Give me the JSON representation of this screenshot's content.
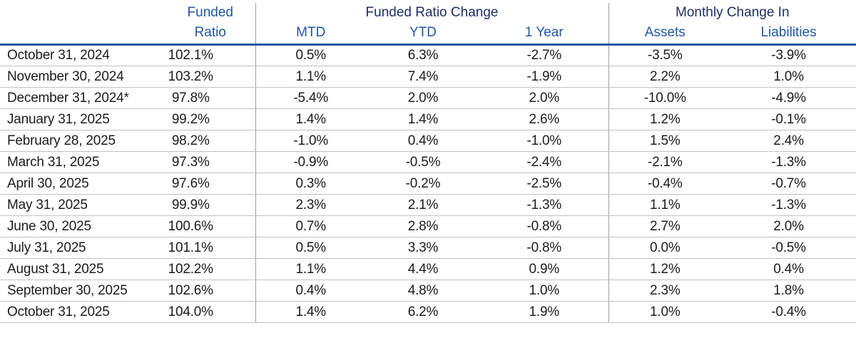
{
  "colors": {
    "group_header_text": "#1f2f63",
    "sub_header_text": "#2157a6",
    "header_rule": "#2057a6",
    "row_divider": "#c2c2c2",
    "column_divider": "#9e9e9e",
    "body_text": "#1c1c1c",
    "background": "#ffffff"
  },
  "chart_data": {
    "type": "table",
    "column_groups": [
      {
        "label": "Funded Ratio",
        "columns": [
          "Funded Ratio"
        ]
      },
      {
        "label": "Funded Ratio Change",
        "columns": [
          "MTD",
          "YTD",
          "1 Year"
        ]
      },
      {
        "label": "Monthly Change In",
        "columns": [
          "Assets",
          "Liabilities"
        ]
      }
    ],
    "headers": {
      "date": "",
      "funded": "Funded",
      "ratio": "Ratio",
      "group_funded_ratio_change": "Funded Ratio Change",
      "group_monthly_change_in": "Monthly Change In",
      "mtd": "MTD",
      "ytd": "YTD",
      "one_year": "1 Year",
      "assets": "Assets",
      "liabilities": "Liabilities"
    },
    "rows": [
      {
        "date": "October 31, 2024",
        "funded_ratio": "102.1%",
        "mtd": "0.5%",
        "ytd": "6.3%",
        "one_year": "-2.7%",
        "assets": "-3.5%",
        "liabilities": "-3.9%"
      },
      {
        "date": "November 30, 2024",
        "funded_ratio": "103.2%",
        "mtd": "1.1%",
        "ytd": "7.4%",
        "one_year": "-1.9%",
        "assets": "2.2%",
        "liabilities": "1.0%"
      },
      {
        "date": "December 31, 2024*",
        "funded_ratio": "97.8%",
        "mtd": "-5.4%",
        "ytd": "2.0%",
        "one_year": "2.0%",
        "assets": "-10.0%",
        "liabilities": "-4.9%"
      },
      {
        "date": "January 31, 2025",
        "funded_ratio": "99.2%",
        "mtd": "1.4%",
        "ytd": "1.4%",
        "one_year": "2.6%",
        "assets": "1.2%",
        "liabilities": "-0.1%"
      },
      {
        "date": "February 28, 2025",
        "funded_ratio": "98.2%",
        "mtd": "-1.0%",
        "ytd": "0.4%",
        "one_year": "-1.0%",
        "assets": "1.5%",
        "liabilities": "2.4%"
      },
      {
        "date": "March 31, 2025",
        "funded_ratio": "97.3%",
        "mtd": "-0.9%",
        "ytd": "-0.5%",
        "one_year": "-2.4%",
        "assets": "-2.1%",
        "liabilities": "-1.3%"
      },
      {
        "date": "April 30, 2025",
        "funded_ratio": "97.6%",
        "mtd": "0.3%",
        "ytd": "-0.2%",
        "one_year": "-2.5%",
        "assets": "-0.4%",
        "liabilities": "-0.7%"
      },
      {
        "date": "May 31, 2025",
        "funded_ratio": "99.9%",
        "mtd": "2.3%",
        "ytd": "2.1%",
        "one_year": "-1.3%",
        "assets": "1.1%",
        "liabilities": "-1.3%"
      },
      {
        "date": "June 30, 2025",
        "funded_ratio": "100.6%",
        "mtd": "0.7%",
        "ytd": "2.8%",
        "one_year": "-0.8%",
        "assets": "2.7%",
        "liabilities": "2.0%"
      },
      {
        "date": "July 31, 2025",
        "funded_ratio": "101.1%",
        "mtd": "0.5%",
        "ytd": "3.3%",
        "one_year": "-0.8%",
        "assets": "0.0%",
        "liabilities": "-0.5%"
      },
      {
        "date": "August 31, 2025",
        "funded_ratio": "102.2%",
        "mtd": "1.1%",
        "ytd": "4.4%",
        "one_year": "0.9%",
        "assets": "1.2%",
        "liabilities": "0.4%"
      },
      {
        "date": "September 30, 2025",
        "funded_ratio": "102.6%",
        "mtd": "0.4%",
        "ytd": "4.8%",
        "one_year": "1.0%",
        "assets": "2.3%",
        "liabilities": "1.8%"
      },
      {
        "date": "October 31, 2025",
        "funded_ratio": "104.0%",
        "mtd": "1.4%",
        "ytd": "6.2%",
        "one_year": "1.9%",
        "assets": "1.0%",
        "liabilities": "-0.4%"
      }
    ]
  }
}
